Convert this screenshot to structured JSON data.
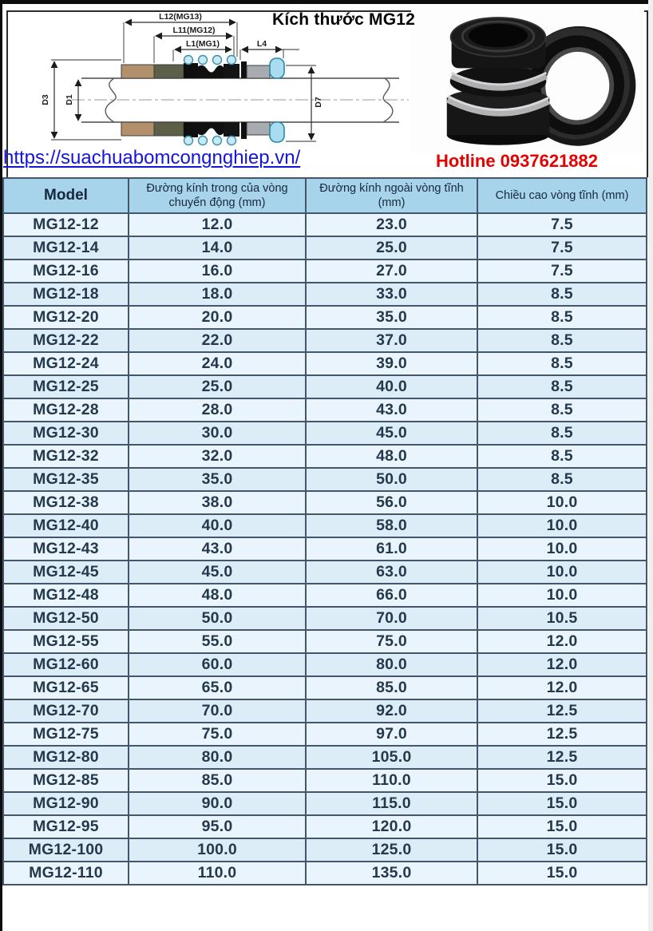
{
  "header": {
    "title": "Kích thước MG12",
    "url": "https://suachuabomcongnghiep.vn/",
    "hotline": "Hotline 0937621882"
  },
  "diagram": {
    "dim_l12": "L12(MG13)",
    "dim_l11": "L11(MG12)",
    "dim_l1": "L1(MG1)",
    "dim_l4": "L4",
    "dim_d3": "D3",
    "dim_d1": "D1",
    "dim_d7": "D7"
  },
  "table": {
    "columns": [
      "Model",
      "Đường kính trong của vòng chuyển động (mm)",
      "Đường kính ngoài vòng tĩnh (mm)",
      "Chiều cao vòng tĩnh (mm)"
    ],
    "rows": [
      [
        "MG12-12",
        "12.0",
        "23.0",
        "7.5"
      ],
      [
        "MG12-14",
        "14.0",
        "25.0",
        "7.5"
      ],
      [
        "MG12-16",
        "16.0",
        "27.0",
        "7.5"
      ],
      [
        "MG12-18",
        "18.0",
        "33.0",
        "8.5"
      ],
      [
        "MG12-20",
        "20.0",
        "35.0",
        "8.5"
      ],
      [
        "MG12-22",
        "22.0",
        "37.0",
        "8.5"
      ],
      [
        "MG12-24",
        "24.0",
        "39.0",
        "8.5"
      ],
      [
        "MG12-25",
        "25.0",
        "40.0",
        "8.5"
      ],
      [
        "MG12-28",
        "28.0",
        "43.0",
        "8.5"
      ],
      [
        "MG12-30",
        "30.0",
        "45.0",
        "8.5"
      ],
      [
        "MG12-32",
        "32.0",
        "48.0",
        "8.5"
      ],
      [
        "MG12-35",
        "35.0",
        "50.0",
        "8.5"
      ],
      [
        "MG12-38",
        "38.0",
        "56.0",
        "10.0"
      ],
      [
        "MG12-40",
        "40.0",
        "58.0",
        "10.0"
      ],
      [
        "MG12-43",
        "43.0",
        "61.0",
        "10.0"
      ],
      [
        "MG12-45",
        "45.0",
        "63.0",
        "10.0"
      ],
      [
        "MG12-48",
        "48.0",
        "66.0",
        "10.0"
      ],
      [
        "MG12-50",
        "50.0",
        "70.0",
        "10.5"
      ],
      [
        "MG12-55",
        "55.0",
        "75.0",
        "12.0"
      ],
      [
        "MG12-60",
        "60.0",
        "80.0",
        "12.0"
      ],
      [
        "MG12-65",
        "65.0",
        "85.0",
        "12.0"
      ],
      [
        "MG12-70",
        "70.0",
        "92.0",
        "12.5"
      ],
      [
        "MG12-75",
        "75.0",
        "97.0",
        "12.5"
      ],
      [
        "MG12-80",
        "80.0",
        "105.0",
        "12.5"
      ],
      [
        "MG12-85",
        "85.0",
        "110.0",
        "15.0"
      ],
      [
        "MG12-90",
        "90.0",
        "115.0",
        "15.0"
      ],
      [
        "MG12-95",
        "95.0",
        "120.0",
        "15.0"
      ],
      [
        "MG12-100",
        "100.0",
        "125.0",
        "15.0"
      ],
      [
        "MG12-110",
        "110.0",
        "135.0",
        "15.0"
      ]
    ]
  },
  "colors": {
    "header_bg": "#a7d3eb",
    "row_bg": "#e9f4fc",
    "row_bg_alt": "#ddedf8",
    "grid_border": "#44566b",
    "link_blue": "#1414dd",
    "hotline_red": "#e60000"
  }
}
